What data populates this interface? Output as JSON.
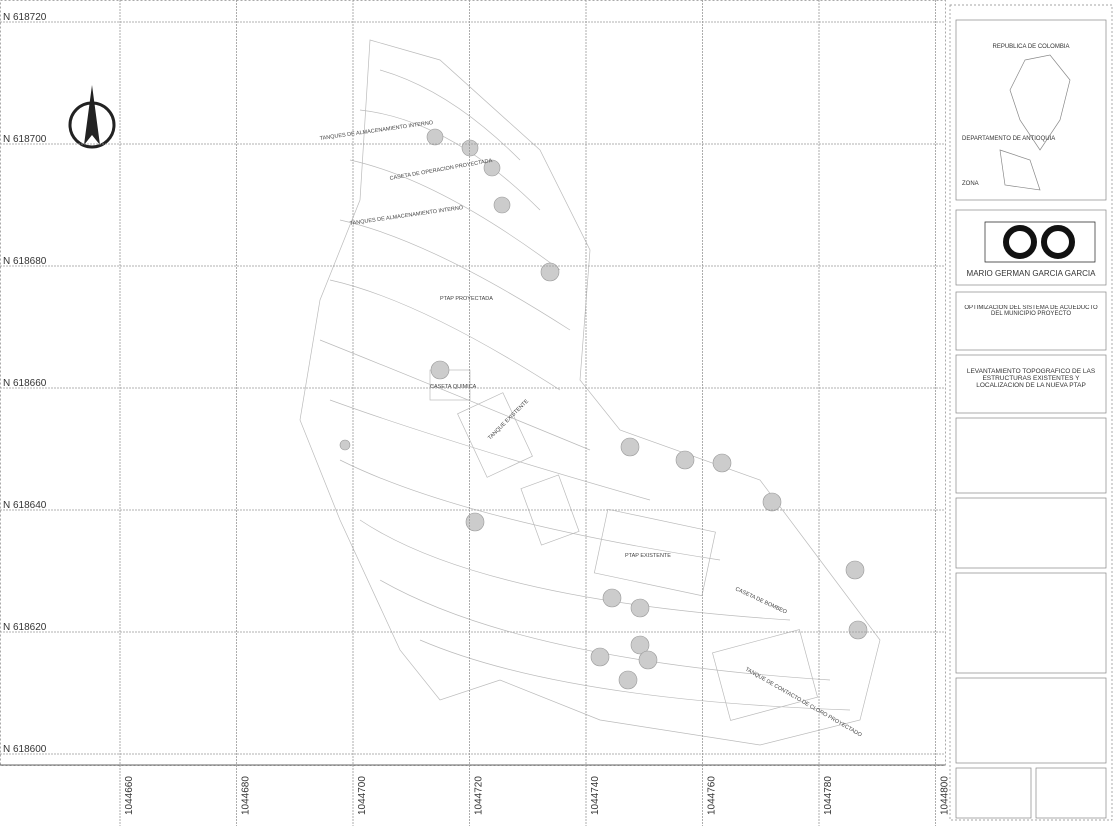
{
  "map": {
    "northings": [
      "N 618720",
      "N 618700",
      "N 618680",
      "N 618660",
      "N 618640",
      "N 618620",
      "N 618600"
    ],
    "eastings": [
      1044660,
      1044680,
      1044700,
      1044720,
      1044740,
      1044760,
      1044780,
      1044800
    ],
    "labels": [
      "TANQUES DE ALMACENAMIENTO INTERNO",
      "CASETA DE OPERACION PROYECTADA",
      "TANQUES DE ALMACENAMIENTO INTERNO",
      "PTAP PROYECTADA",
      "CASETA QUIMICA",
      "TANQUE EXISTENTE",
      "PTAP EXISTENTE",
      "CASETA DE BOMBEO",
      "TANQUE DE CONTACTO DE CLORO PROYECTADO"
    ]
  },
  "title_block": {
    "country": "REPUBLICA DE COLOMBIA",
    "department": "DEPARTAMENTO DE ANTIOQUIA",
    "zone": "ZONA",
    "author": "MARIO GERMAN GARCIA GARCIA",
    "project": "OPTIMIZACION DEL SISTEMA DE ACUEDUCTO DEL MUNICIPIO PROYECTO",
    "drawing_title": "LEVANTAMIENTO TOPOGRAFICO DE LAS ESTRUCTURAS EXISTENTES Y LOCALIZACION DE LA NUEVA PTAP"
  }
}
